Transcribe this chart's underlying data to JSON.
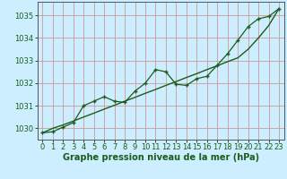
{
  "x": [
    0,
    1,
    2,
    3,
    4,
    5,
    6,
    7,
    8,
    9,
    10,
    11,
    12,
    13,
    14,
    15,
    16,
    17,
    18,
    19,
    20,
    21,
    22,
    23
  ],
  "y_actual": [
    1029.8,
    1029.85,
    1030.05,
    1030.25,
    1031.0,
    1031.2,
    1031.4,
    1031.2,
    1031.15,
    1031.65,
    1032.0,
    1032.6,
    1032.5,
    1031.95,
    1031.9,
    1032.2,
    1032.3,
    1032.8,
    1033.3,
    1033.9,
    1034.5,
    1034.85,
    1034.95,
    1035.3
  ],
  "y_trend": [
    1029.8,
    1030.0,
    1030.15,
    1030.32,
    1030.5,
    1030.67,
    1030.85,
    1031.02,
    1031.2,
    1031.37,
    1031.55,
    1031.72,
    1031.9,
    1032.07,
    1032.25,
    1032.42,
    1032.6,
    1032.77,
    1032.95,
    1033.12,
    1033.5,
    1034.0,
    1034.55,
    1035.3
  ],
  "bg_color": "#cceeff",
  "grid_color": "#cc9999",
  "line_color": "#1a5c1a",
  "xlabel": "Graphe pression niveau de la mer (hPa)",
  "ylim": [
    1029.5,
    1035.6
  ],
  "xlim": [
    -0.5,
    23.5
  ],
  "yticks": [
    1030,
    1031,
    1032,
    1033,
    1034,
    1035
  ],
  "xticks": [
    0,
    1,
    2,
    3,
    4,
    5,
    6,
    7,
    8,
    9,
    10,
    11,
    12,
    13,
    14,
    15,
    16,
    17,
    18,
    19,
    20,
    21,
    22,
    23
  ],
  "xlabel_fontsize": 7,
  "tick_fontsize": 6,
  "label_color": "#1a5c1a"
}
